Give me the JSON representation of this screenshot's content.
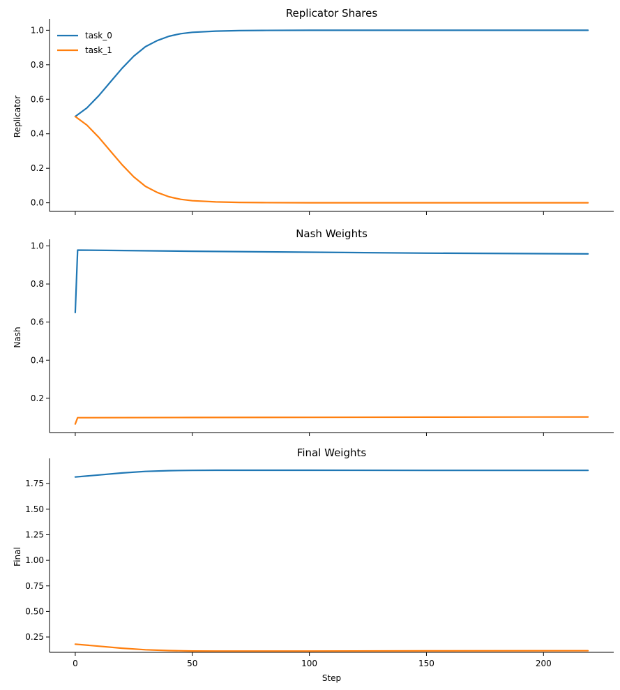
{
  "chart_data": [
    {
      "type": "line",
      "title": "Replicator Shares",
      "xlabel": "",
      "ylabel": "Replicator",
      "xlim": [
        -11,
        230
      ],
      "ylim": [
        -0.05,
        1.05
      ],
      "xticks": [
        0,
        50,
        100,
        150,
        200
      ],
      "show_xtick_labels": false,
      "yticks": [
        0.0,
        0.2,
        0.4,
        0.6,
        0.8,
        1.0
      ],
      "ytick_labels": [
        "0.0",
        "0.2",
        "0.4",
        "0.6",
        "0.8",
        "1.0"
      ],
      "grid": false,
      "legend": "upper-left",
      "series": [
        {
          "name": "task_0",
          "color": "#1f77b4",
          "x": [
            0,
            5,
            10,
            15,
            20,
            25,
            30,
            35,
            40,
            45,
            50,
            60,
            70,
            80,
            100,
            150,
            219
          ],
          "y": [
            0.5,
            0.55,
            0.62,
            0.7,
            0.78,
            0.85,
            0.905,
            0.94,
            0.965,
            0.98,
            0.988,
            0.995,
            0.998,
            0.999,
            1.0,
            1.0,
            1.0
          ]
        },
        {
          "name": "task_1",
          "color": "#ff7f0e",
          "x": [
            0,
            5,
            10,
            15,
            20,
            25,
            30,
            35,
            40,
            45,
            50,
            60,
            70,
            80,
            100,
            150,
            219
          ],
          "y": [
            0.5,
            0.45,
            0.38,
            0.3,
            0.22,
            0.15,
            0.095,
            0.06,
            0.035,
            0.02,
            0.012,
            0.005,
            0.002,
            0.001,
            0.0,
            0.0,
            0.0
          ]
        }
      ]
    },
    {
      "type": "line",
      "title": "Nash Weights",
      "xlabel": "",
      "ylabel": "Nash",
      "xlim": [
        -11,
        230
      ],
      "ylim": [
        0.02,
        1.02
      ],
      "xticks": [
        0,
        50,
        100,
        150,
        200
      ],
      "show_xtick_labels": false,
      "yticks": [
        0.2,
        0.4,
        0.6,
        0.8,
        1.0
      ],
      "ytick_labels": [
        "0.2",
        "0.4",
        "0.6",
        "0.8",
        "1.0"
      ],
      "grid": false,
      "series": [
        {
          "name": "task_0",
          "color": "#1f77b4",
          "x": [
            0,
            1,
            50,
            100,
            150,
            219
          ],
          "y": [
            0.65,
            0.978,
            0.972,
            0.967,
            0.962,
            0.958
          ]
        },
        {
          "name": "task_1",
          "color": "#ff7f0e",
          "x": [
            0,
            1,
            50,
            100,
            150,
            219
          ],
          "y": [
            0.065,
            0.098,
            0.099,
            0.1,
            0.101,
            0.102
          ]
        }
      ]
    },
    {
      "type": "line",
      "title": "Final Weights",
      "xlabel": "Step",
      "ylabel": "Final",
      "xlim": [
        -11,
        230
      ],
      "ylim": [
        0.1,
        1.97
      ],
      "xticks": [
        0,
        50,
        100,
        150,
        200
      ],
      "xtick_labels": [
        "0",
        "50",
        "100",
        "150",
        "200"
      ],
      "show_xtick_labels": true,
      "yticks": [
        0.25,
        0.5,
        0.75,
        1.0,
        1.25,
        1.5,
        1.75
      ],
      "ytick_labels": [
        "0.25",
        "0.50",
        "0.75",
        "1.00",
        "1.25",
        "1.50",
        "1.75"
      ],
      "grid": false,
      "series": [
        {
          "name": "task_0",
          "color": "#1f77b4",
          "x": [
            0,
            10,
            20,
            30,
            40,
            50,
            60,
            100,
            150,
            219
          ],
          "y": [
            1.815,
            1.835,
            1.855,
            1.87,
            1.877,
            1.88,
            1.881,
            1.881,
            1.88,
            1.88
          ]
        },
        {
          "name": "task_1",
          "color": "#ff7f0e",
          "x": [
            0,
            10,
            20,
            30,
            40,
            50,
            60,
            100,
            150,
            219
          ],
          "y": [
            0.18,
            0.16,
            0.14,
            0.125,
            0.117,
            0.113,
            0.112,
            0.112,
            0.114,
            0.116
          ]
        }
      ]
    }
  ]
}
